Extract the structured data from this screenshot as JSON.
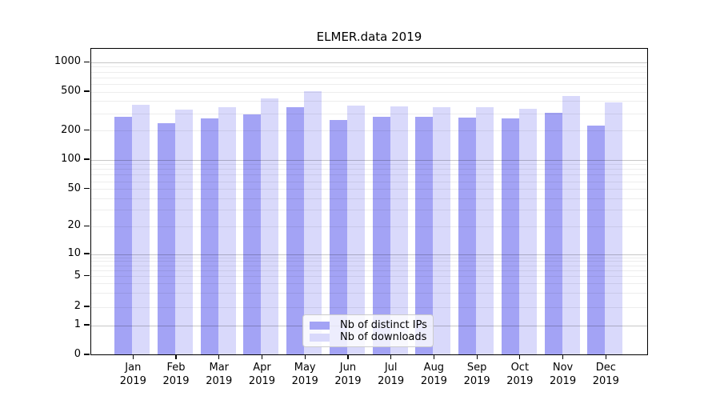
{
  "chart_data": {
    "type": "bar",
    "title": "ELMER.data 2019",
    "categories": [
      "Jan",
      "Feb",
      "Mar",
      "Apr",
      "May",
      "Jun",
      "Jul",
      "Aug",
      "Sep",
      "Oct",
      "Nov",
      "Dec"
    ],
    "category_year": "2019",
    "series": [
      {
        "name": "Nb of distinct IPs",
        "color": "#a3a3f5",
        "values": [
          278,
          240,
          268,
          295,
          352,
          261,
          277,
          277,
          272,
          268,
          308,
          226
        ]
      },
      {
        "name": "Nb of downloads",
        "color": "#d9d9fb",
        "values": [
          369,
          330,
          350,
          430,
          505,
          362,
          357,
          347,
          351,
          339,
          458,
          391
        ]
      }
    ],
    "yscale": "symlog",
    "y_ticks": [
      0,
      1,
      2,
      5,
      10,
      20,
      50,
      100,
      200,
      500,
      1000
    ],
    "y_tick_labels": [
      "0",
      "1",
      "2",
      "5",
      "10",
      "20",
      "50",
      "100",
      "200",
      "500",
      "1000"
    ],
    "ylim": [
      0,
      1380
    ],
    "xlabel": "",
    "ylabel": "",
    "grid": true,
    "legend_position": "lower center",
    "colors": {
      "axis": "#000000",
      "grid_major": "#c9c9c9",
      "grid_minor": "#ededed",
      "legend_border": "#cccccc",
      "background": "#ffffff"
    }
  }
}
